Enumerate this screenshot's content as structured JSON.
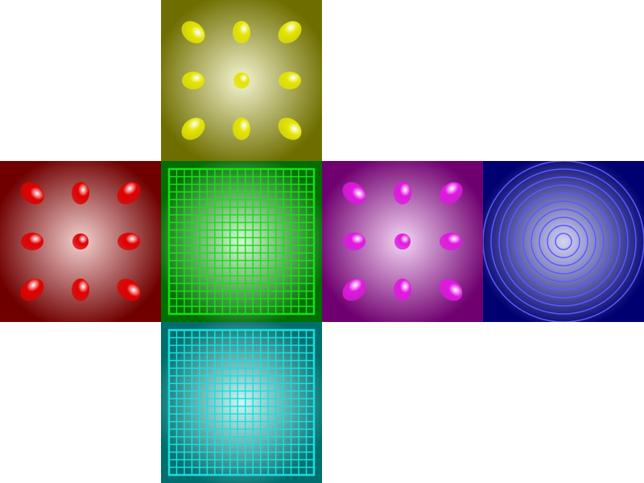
{
  "faces": [
    {
      "id": "top",
      "pattern": "dots",
      "base": "#6e6e00",
      "accent": "#e4e400",
      "glow": "#f4f4d0"
    },
    {
      "id": "left",
      "pattern": "dots",
      "base": "#700000",
      "accent": "#e00000",
      "glow": "#f4d0d0"
    },
    {
      "id": "front",
      "pattern": "grid",
      "base": "#006e00",
      "accent": "#18e018",
      "glow": "#d8f8d8"
    },
    {
      "id": "right",
      "pattern": "dots",
      "base": "#700070",
      "accent": "#e018e0",
      "glow": "#f4d4f4"
    },
    {
      "id": "back",
      "pattern": "rings",
      "base": "#000070",
      "accent": "#5a5aff",
      "glow": "#d4d4f4"
    },
    {
      "id": "bottom",
      "pattern": "grid",
      "base": "#006e6e",
      "accent": "#18e0e0",
      "glow": "#d0f4f4"
    }
  ]
}
